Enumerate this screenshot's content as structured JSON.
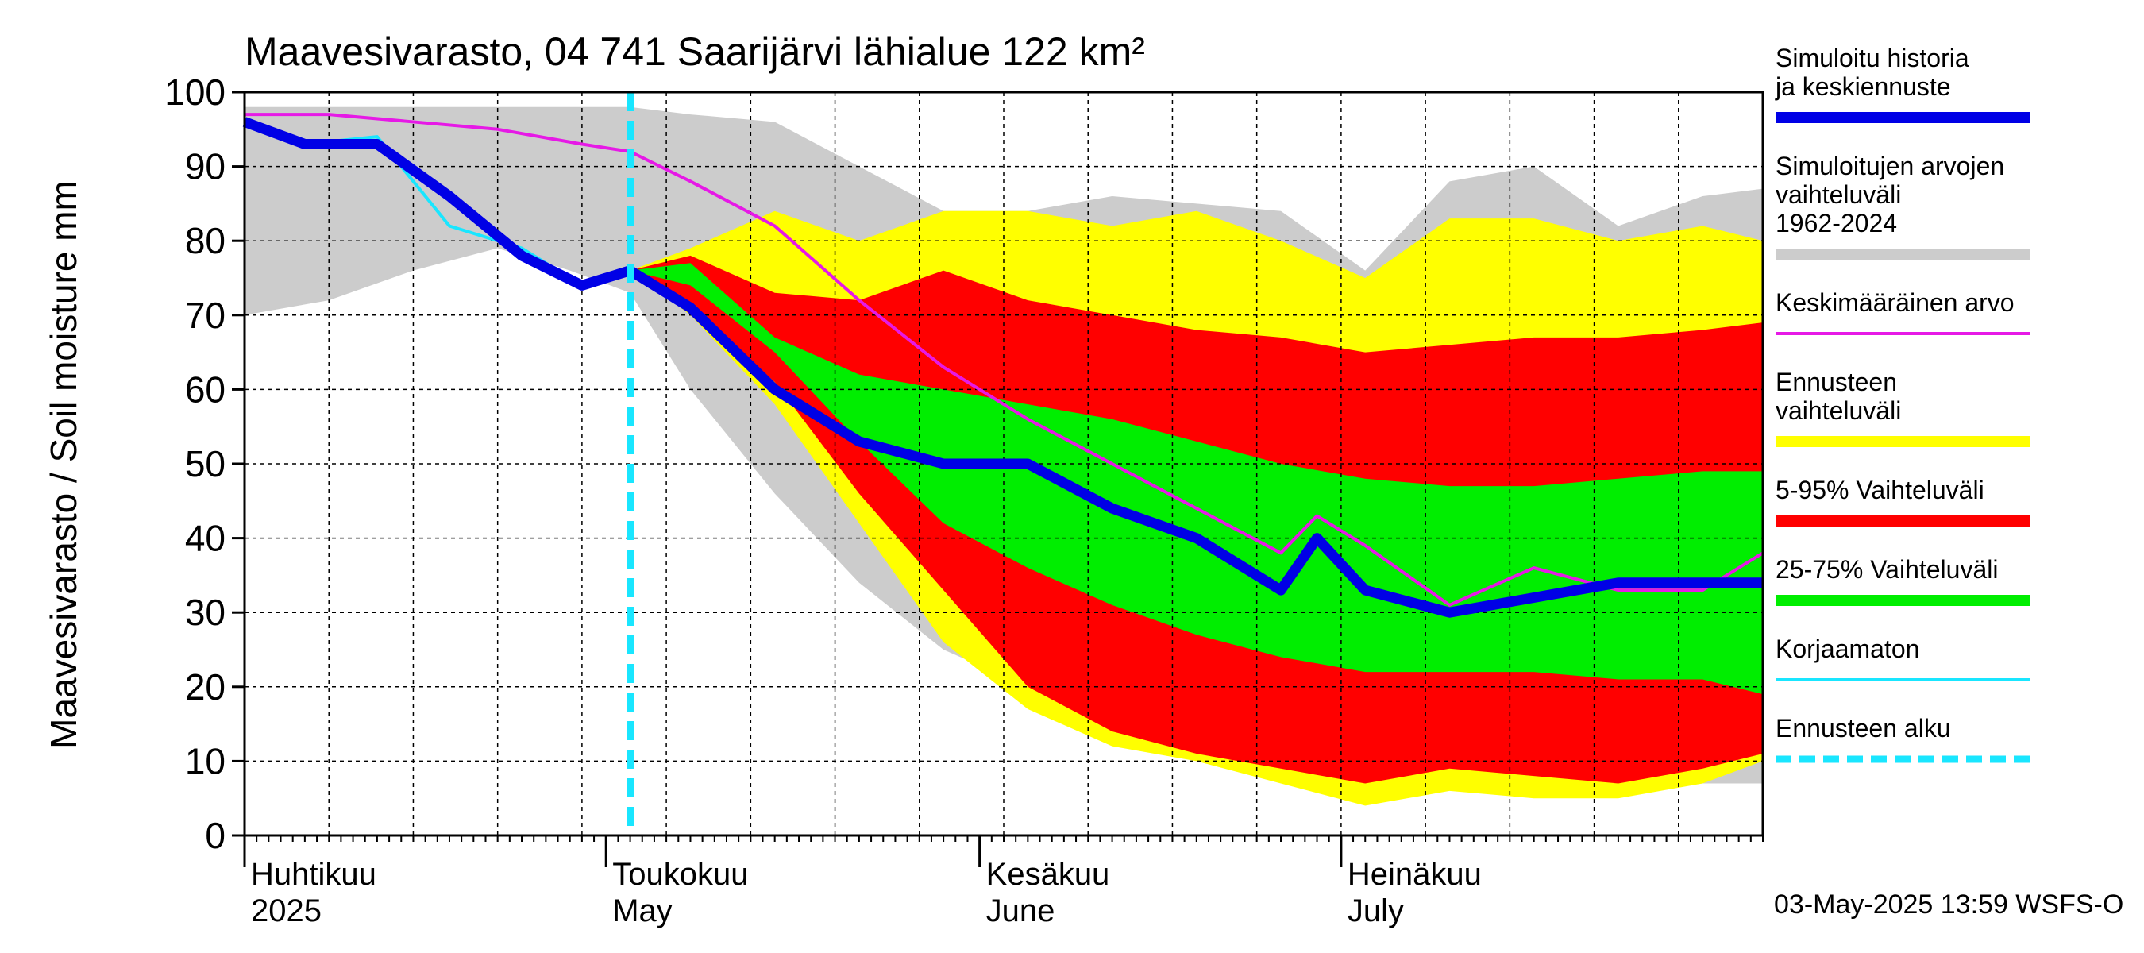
{
  "chart_data": {
    "type": "area",
    "title": "Maavesivarasto, 04 741 Saarijärvi lähialue 122 km²",
    "ylabel": "Maavesivarasto / Soil moisture   mm",
    "ylim": [
      0,
      100
    ],
    "yticks": [
      0,
      10,
      20,
      30,
      40,
      50,
      60,
      70,
      80,
      90,
      100
    ],
    "xlim": [
      "2025-04-01",
      "2025-08-05"
    ],
    "grid": true,
    "legend_placement": "right",
    "month_labels": [
      {
        "top": "Huhtikuu",
        "bottom": "2025",
        "date": "2025-04-01"
      },
      {
        "top": "Toukokuu",
        "bottom": "May",
        "date": "2025-05-01"
      },
      {
        "top": "Kesäkuu",
        "bottom": "June",
        "date": "2025-06-01"
      },
      {
        "top": "Heinäkuu",
        "bottom": "July",
        "date": "2025-07-01"
      }
    ],
    "forecast_start": "2025-05-03",
    "footer": "03-May-2025 13:59 WSFS-O",
    "legend": [
      {
        "label": "Simuloitu historia ja keskiennuste",
        "color": "#0000e6",
        "style": "thick"
      },
      {
        "label": "Simuloitujen arvojen vaihteluväli 1962-2024",
        "color": "#cccccc",
        "style": "thick"
      },
      {
        "label": "Keskimääräinen arvo",
        "color": "#e619e6",
        "style": "thin"
      },
      {
        "label": "Ennusteen vaihteluväli",
        "color": "#ffff00",
        "style": "thick"
      },
      {
        "label": "5-95% Vaihteluväli",
        "color": "#ff0000",
        "style": "thick"
      },
      {
        "label": "25-75% Vaihteluväli",
        "color": "#00ee00",
        "style": "thick"
      },
      {
        "label": "Korjaamaton",
        "color": "#19e6ff",
        "style": "thin"
      },
      {
        "label": "Ennusteen alku",
        "color": "#19e6ff",
        "style": "dashed"
      }
    ],
    "series": [
      {
        "name": "Simuloitujen arvojen vaihteluväli 1962-2024",
        "kind": "band",
        "color": "#cccccc",
        "x": [
          "2025-04-01",
          "2025-04-08",
          "2025-04-15",
          "2025-04-22",
          "2025-04-28",
          "2025-05-03",
          "2025-05-08",
          "2025-05-15",
          "2025-05-22",
          "2025-05-29",
          "2025-06-05",
          "2025-06-12",
          "2025-06-19",
          "2025-06-26",
          "2025-07-03",
          "2025-07-10",
          "2025-07-17",
          "2025-07-24",
          "2025-07-31",
          "2025-08-05"
        ],
        "low": [
          70,
          72,
          76,
          79,
          76,
          73,
          60,
          46,
          34,
          25,
          20,
          16,
          12,
          9,
          7,
          8,
          7,
          6,
          7,
          7
        ],
        "high": [
          98,
          98,
          98,
          98,
          98,
          98,
          97,
          96,
          90,
          84,
          84,
          86,
          85,
          84,
          76,
          88,
          90,
          82,
          86,
          87
        ]
      },
      {
        "name": "Ennusteen vaihteluväli",
        "kind": "band",
        "color": "#ffff00",
        "x": [
          "2025-05-03",
          "2025-05-08",
          "2025-05-15",
          "2025-05-22",
          "2025-05-29",
          "2025-06-05",
          "2025-06-12",
          "2025-06-19",
          "2025-06-26",
          "2025-07-03",
          "2025-07-10",
          "2025-07-17",
          "2025-07-24",
          "2025-07-31",
          "2025-08-05"
        ],
        "low": [
          76,
          70,
          58,
          42,
          26,
          17,
          12,
          10,
          7,
          4,
          6,
          5,
          5,
          7,
          10
        ],
        "high": [
          76,
          79,
          84,
          80,
          84,
          84,
          82,
          84,
          80,
          75,
          83,
          83,
          80,
          82,
          80
        ]
      },
      {
        "name": "5-95% Vaihteluväli",
        "kind": "band",
        "color": "#ff0000",
        "x": [
          "2025-05-03",
          "2025-05-08",
          "2025-05-15",
          "2025-05-22",
          "2025-05-29",
          "2025-06-05",
          "2025-06-12",
          "2025-06-19",
          "2025-06-26",
          "2025-07-03",
          "2025-07-10",
          "2025-07-17",
          "2025-07-24",
          "2025-07-31",
          "2025-08-05"
        ],
        "low": [
          76,
          71,
          61,
          46,
          33,
          20,
          14,
          11,
          9,
          7,
          9,
          8,
          7,
          9,
          11
        ],
        "high": [
          76,
          78,
          73,
          72,
          76,
          72,
          70,
          68,
          67,
          65,
          66,
          67,
          67,
          68,
          69
        ]
      },
      {
        "name": "25-75% Vaihteluväli",
        "kind": "band",
        "color": "#00ee00",
        "x": [
          "2025-05-03",
          "2025-05-08",
          "2025-05-15",
          "2025-05-22",
          "2025-05-29",
          "2025-06-05",
          "2025-06-12",
          "2025-06-19",
          "2025-06-26",
          "2025-07-03",
          "2025-07-10",
          "2025-07-17",
          "2025-07-24",
          "2025-07-31",
          "2025-08-05"
        ],
        "low": [
          76,
          74,
          65,
          53,
          42,
          36,
          31,
          27,
          24,
          22,
          22,
          22,
          21,
          21,
          19
        ],
        "high": [
          76,
          77,
          67,
          62,
          60,
          58,
          56,
          53,
          50,
          48,
          47,
          47,
          48,
          49,
          49
        ]
      },
      {
        "name": "Keskimääräinen arvo",
        "kind": "line",
        "color": "#e619e6",
        "width": 4,
        "x": [
          "2025-04-01",
          "2025-04-08",
          "2025-04-15",
          "2025-04-22",
          "2025-04-29",
          "2025-05-03",
          "2025-05-08",
          "2025-05-15",
          "2025-05-22",
          "2025-05-29",
          "2025-06-05",
          "2025-06-12",
          "2025-06-19",
          "2025-06-26",
          "2025-06-29",
          "2025-07-03",
          "2025-07-10",
          "2025-07-17",
          "2025-07-24",
          "2025-07-31",
          "2025-08-05"
        ],
        "y": [
          97,
          97,
          96,
          95,
          93,
          92,
          88,
          82,
          72,
          63,
          56,
          50,
          44,
          38,
          43,
          39,
          31,
          36,
          33,
          33,
          38
        ]
      },
      {
        "name": "Korjaamaton",
        "kind": "line",
        "color": "#19e6ff",
        "width": 4,
        "x": [
          "2025-04-01",
          "2025-04-06",
          "2025-04-12",
          "2025-04-18",
          "2025-04-24",
          "2025-04-29",
          "2025-05-02"
        ],
        "y": [
          96,
          93,
          94,
          82,
          79,
          74,
          76
        ]
      },
      {
        "name": "Simuloitu historia ja keskiennuste",
        "kind": "line",
        "color": "#0000e6",
        "width": 13,
        "x": [
          "2025-04-01",
          "2025-04-06",
          "2025-04-12",
          "2025-04-18",
          "2025-04-24",
          "2025-04-29",
          "2025-05-03",
          "2025-05-08",
          "2025-05-15",
          "2025-05-22",
          "2025-05-29",
          "2025-06-05",
          "2025-06-12",
          "2025-06-19",
          "2025-06-26",
          "2025-06-29",
          "2025-07-03",
          "2025-07-10",
          "2025-07-17",
          "2025-07-24",
          "2025-07-31",
          "2025-08-05"
        ],
        "y": [
          96,
          93,
          93,
          86,
          78,
          74,
          76,
          71,
          60,
          53,
          50,
          50,
          44,
          40,
          33,
          40,
          33,
          30,
          32,
          34,
          34,
          34
        ]
      }
    ]
  }
}
